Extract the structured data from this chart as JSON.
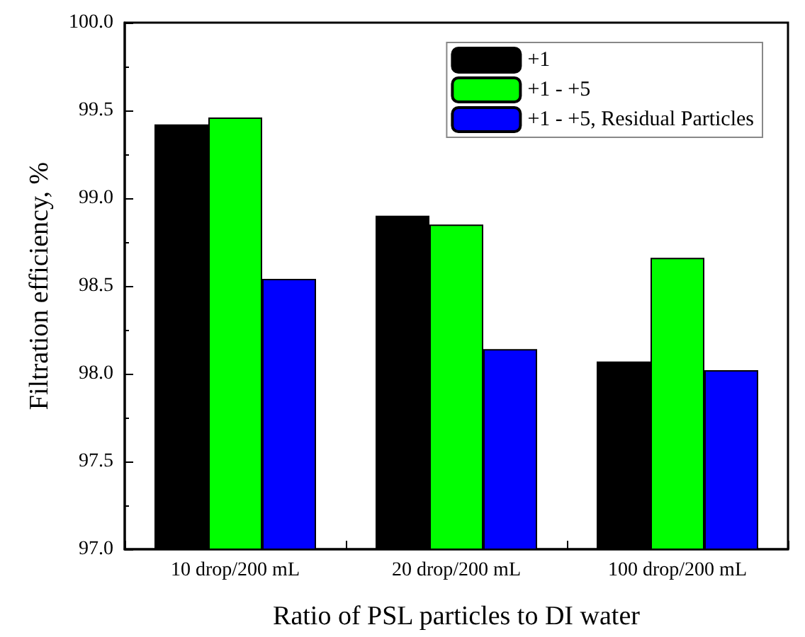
{
  "chart_data": {
    "type": "bar",
    "xlabel": "Ratio of PSL particles to DI water",
    "ylabel": "Filtration efficiency, %",
    "categories": [
      "10 drop/200 mL",
      "20 drop/200 mL",
      "100 drop/200 mL"
    ],
    "series": [
      {
        "name": "+1",
        "color": "#000000",
        "values": [
          99.42,
          98.9,
          98.07
        ]
      },
      {
        "name": "+1 - +5",
        "color": "#00ff00",
        "values": [
          99.46,
          98.85,
          98.66
        ]
      },
      {
        "name": "+1 - +5, Residual Particles",
        "color": "#0000ff",
        "values": [
          98.54,
          98.14,
          98.02
        ]
      }
    ],
    "ylim": [
      97.0,
      100.0
    ],
    "yticks": [
      {
        "value": 97,
        "label": "97.0"
      },
      {
        "value": 97.5,
        "label": "97.5"
      },
      {
        "value": 98,
        "label": "98.0"
      },
      {
        "value": 98.5,
        "label": "98.5"
      },
      {
        "value": 99,
        "label": "99.0"
      },
      {
        "value": 99.5,
        "label": "99.5"
      },
      {
        "value": 100,
        "label": "100.0"
      }
    ],
    "grid": false,
    "legend": "top right"
  }
}
